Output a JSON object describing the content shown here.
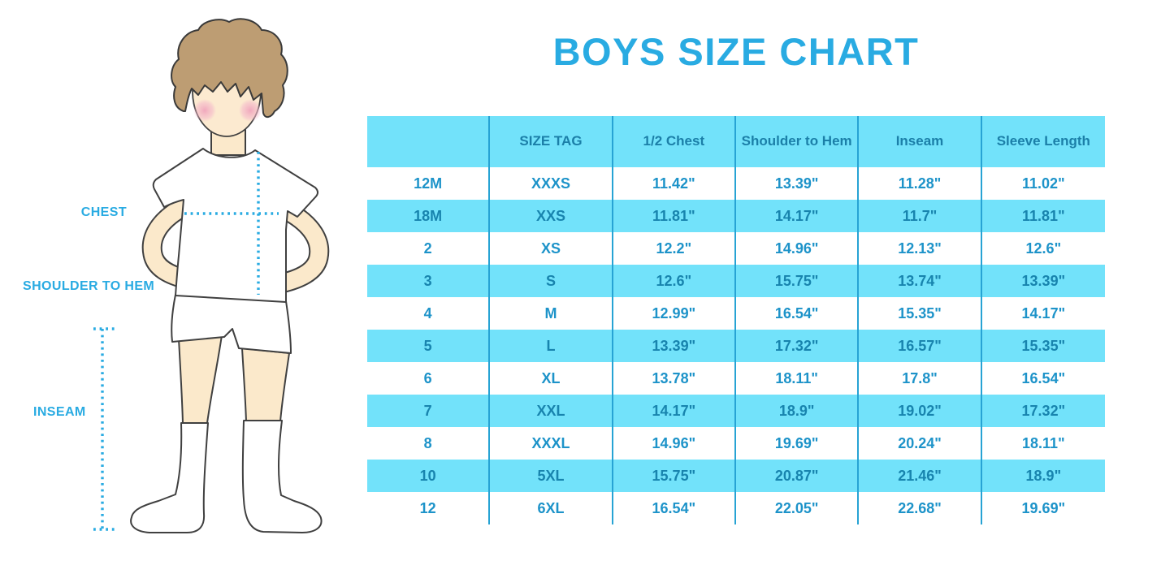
{
  "page_title": "BOYS SIZE CHART",
  "accent_color": "#29abe2",
  "table_stripe_color": "#72e2fa",
  "figure": {
    "chest_label": "CHEST",
    "shoulder_to_hem_label": "SHOULDER TO HEM",
    "inseam_label": "INSEAM"
  },
  "chart_data": {
    "type": "table",
    "title": "BOYS SIZE CHART",
    "columns": [
      "",
      "SIZE TAG",
      "1/2 Chest",
      "Shoulder to Hem",
      "Inseam",
      "Sleeve Length"
    ],
    "rows": [
      [
        "12M",
        "XXXS",
        "11.42\"",
        "13.39\"",
        "11.28\"",
        "11.02\""
      ],
      [
        "18M",
        "XXS",
        "11.81\"",
        "14.17\"",
        "11.7\"",
        "11.81\""
      ],
      [
        "2",
        "XS",
        "12.2\"",
        "14.96\"",
        "12.13\"",
        "12.6\""
      ],
      [
        "3",
        "S",
        "12.6\"",
        "15.75\"",
        "13.74\"",
        "13.39\""
      ],
      [
        "4",
        "M",
        "12.99\"",
        "16.54\"",
        "15.35\"",
        "14.17\""
      ],
      [
        "5",
        "L",
        "13.39\"",
        "17.32\"",
        "16.57\"",
        "15.35\""
      ],
      [
        "6",
        "XL",
        "13.78\"",
        "18.11\"",
        "17.8\"",
        "16.54\""
      ],
      [
        "7",
        "XXL",
        "14.17\"",
        "18.9\"",
        "19.02\"",
        "17.32\""
      ],
      [
        "8",
        "XXXL",
        "14.96\"",
        "19.69\"",
        "20.24\"",
        "18.11\""
      ],
      [
        "10",
        "5XL",
        "15.75\"",
        "20.87\"",
        "21.46\"",
        "18.9\""
      ],
      [
        "12",
        "6XL",
        "16.54\"",
        "22.05\"",
        "22.68\"",
        "19.69\""
      ]
    ],
    "layout": {
      "stripe_rows": "odd",
      "header_background": "cyan",
      "grid": "vertical-dividers-only"
    }
  }
}
